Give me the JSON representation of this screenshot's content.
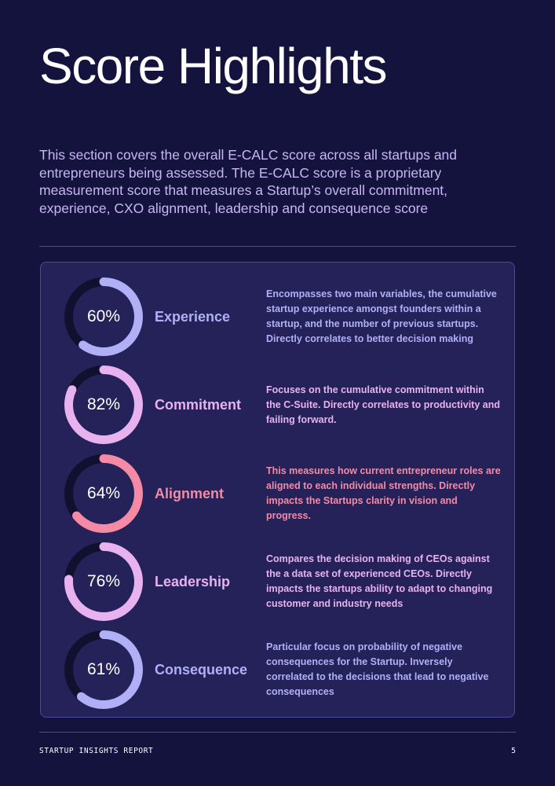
{
  "title": "Score Highlights",
  "intro": "This section covers the overall E-CALC score across all startups and entrepreneurs being assessed. The E-CALC score is a proprietary measurement score that measures a Startup’s overall commitment, experience, CXO alignment, leadership and consequence score",
  "colors": {
    "background": "#14133d",
    "card": "#242258",
    "track": "#11112f"
  },
  "metrics": [
    {
      "percent_label": "60%",
      "value": 60,
      "label": "Experience",
      "color": "#b1b0f7",
      "description": "Encompasses two main variables, the cumulative startup experience amongst founders within a startup, and the number of previous startups. Directly correlates to better decision making"
    },
    {
      "percent_label": "82%",
      "value": 82,
      "label": "Commitment",
      "color": "#e7b2ef",
      "description": "Focuses on the cumulative commitment within the C-Suite.  Directly correlates to productivity and failing forward."
    },
    {
      "percent_label": "64%",
      "value": 64,
      "label": "Alignment",
      "color": "#f58aa6",
      "description": "This measures how current entrepreneur roles are aligned to each individual strengths. Directly impacts the Startups clarity in vision and progress."
    },
    {
      "percent_label": "76%",
      "value": 76,
      "label": "Leadership",
      "color": "#e7b2ef",
      "description": "Compares the decision making of CEOs against the a data set of experienced CEOs. Directly impacts the startups ability to adapt to changing customer and industry needs"
    },
    {
      "percent_label": "61%",
      "value": 61,
      "label": "Consequence",
      "color": "#b1b0f7",
      "description": "Particular focus on probability of negative consequences for the Startup. Inversely correlated to the decisions that lead to negative consequences"
    }
  ],
  "footer": {
    "report_name": "STARTUP INSIGHTS REPORT",
    "page_number": "5"
  }
}
